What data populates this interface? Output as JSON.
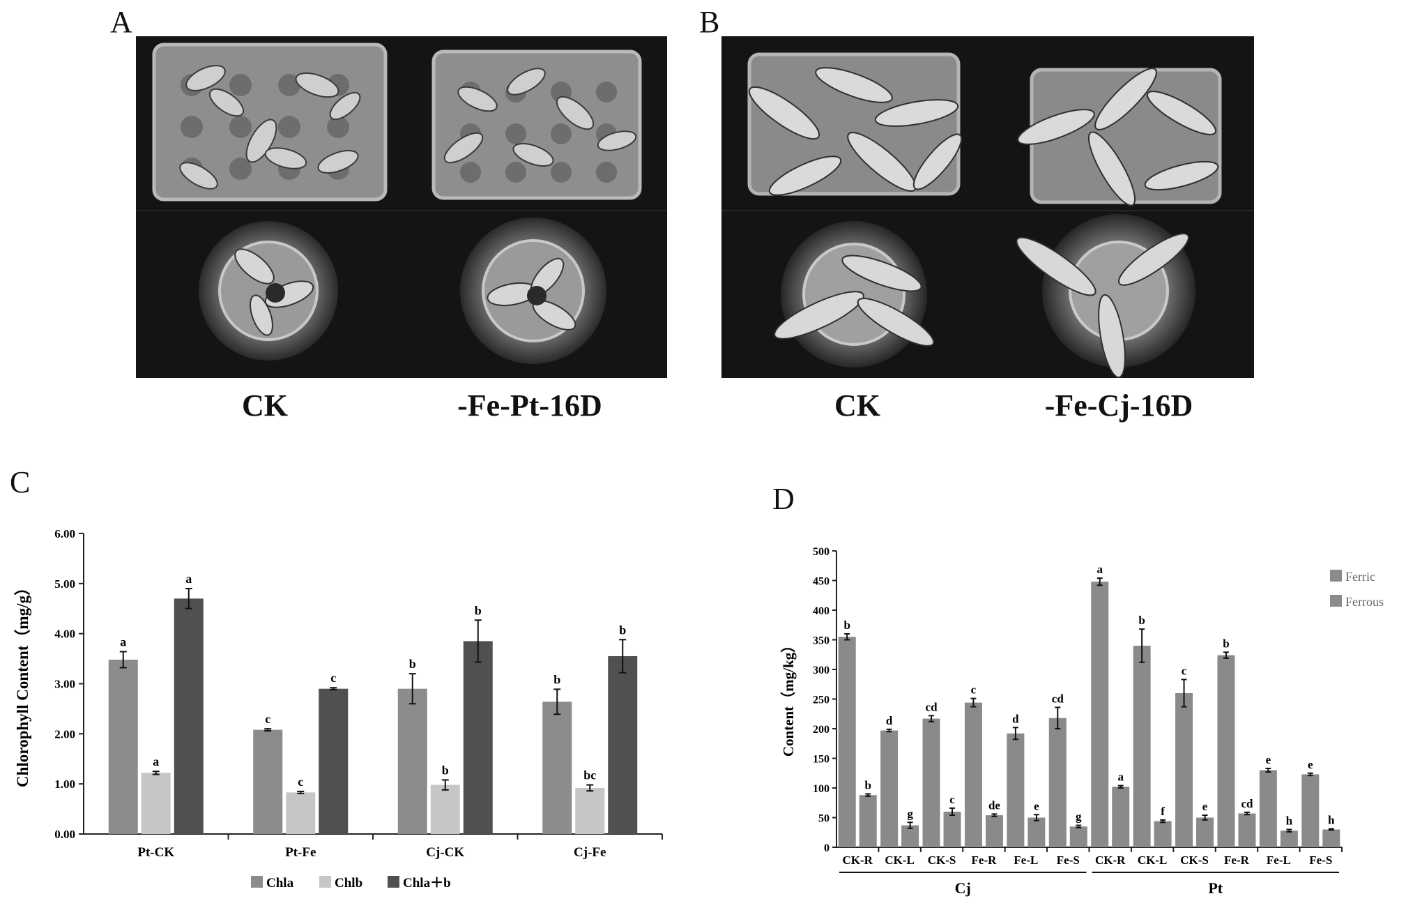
{
  "panels": {
    "a": {
      "letter": "A",
      "captions": [
        "CK",
        "-Fe-Pt-16D"
      ]
    },
    "b": {
      "letter": "B",
      "captions": [
        "CK",
        "-Fe-Cj-16D"
      ]
    },
    "c": {
      "letter": "C"
    },
    "d": {
      "letter": "D"
    }
  },
  "chart_data": [
    {
      "type": "bar",
      "ylabel": "Chlorophyll Content（mg/g）",
      "ylim": [
        0,
        6
      ],
      "yticks": [
        "0.00",
        "1.00",
        "2.00",
        "3.00",
        "4.00",
        "5.00",
        "6.00"
      ],
      "categories": [
        "Pt-CK",
        "Pt-Fe",
        "Cj-CK",
        "Cj-Fe"
      ],
      "legend_position": "bottom",
      "colors": [
        "#8c8c8c",
        "#c6c6c6",
        "#505050"
      ],
      "series": [
        {
          "name": "Chla",
          "values": [
            3.48,
            2.08,
            2.9,
            2.64
          ],
          "errors": [
            0.16,
            0.02,
            0.3,
            0.25
          ],
          "labels": [
            "a",
            "c",
            "b",
            "b"
          ]
        },
        {
          "name": "Chlb",
          "values": [
            1.22,
            0.83,
            0.98,
            0.92
          ],
          "errors": [
            0.03,
            0.02,
            0.1,
            0.06
          ],
          "labels": [
            "a",
            "c",
            "b",
            "bc"
          ]
        },
        {
          "name": "Chla＋b",
          "values": [
            4.7,
            2.9,
            3.85,
            3.55
          ],
          "errors": [
            0.2,
            0.02,
            0.42,
            0.33
          ],
          "labels": [
            "a",
            "c",
            "b",
            "b"
          ]
        }
      ]
    },
    {
      "type": "bar",
      "ylabel": "Content（mg/kg）",
      "ylim": [
        0,
        500
      ],
      "yticks": [
        "0",
        "50",
        "100",
        "150",
        "200",
        "250",
        "300",
        "350",
        "400",
        "450",
        "500"
      ],
      "categories": [
        "CK-R",
        "CK-L",
        "CK-S",
        "Fe-R",
        "Fe-L",
        "Fe-S",
        "CK-R",
        "CK-L",
        "CK-S",
        "Fe-R",
        "Fe-L",
        "Fe-S"
      ],
      "groups": [
        {
          "label": "Cj",
          "count": 6
        },
        {
          "label": "Pt",
          "count": 6
        }
      ],
      "legend_position": "top-right",
      "colors": [
        "#8a8a8a",
        "#8a8a8a"
      ],
      "series": [
        {
          "name": "Ferric",
          "values": [
            355,
            197,
            217,
            244,
            192,
            218,
            448,
            340,
            260,
            324,
            130,
            123
          ],
          "errors": [
            5,
            2,
            5,
            7,
            10,
            18,
            6,
            28,
            23,
            5,
            3,
            2
          ],
          "labels": [
            "b",
            "d",
            "cd",
            "c",
            "d",
            "cd",
            "a",
            "b",
            "c",
            "b",
            "e",
            "e"
          ]
        },
        {
          "name": "Ferrous",
          "values": [
            88,
            37,
            60,
            54,
            50,
            35,
            102,
            44,
            50,
            57,
            28,
            30
          ],
          "errors": [
            2,
            5,
            6,
            2,
            5,
            2,
            2,
            2,
            4,
            2,
            2,
            1
          ],
          "labels": [
            "b",
            "g",
            "c",
            "de",
            "e",
            "g",
            "a",
            "f",
            "e",
            "cd",
            "h",
            "h"
          ]
        }
      ]
    }
  ]
}
